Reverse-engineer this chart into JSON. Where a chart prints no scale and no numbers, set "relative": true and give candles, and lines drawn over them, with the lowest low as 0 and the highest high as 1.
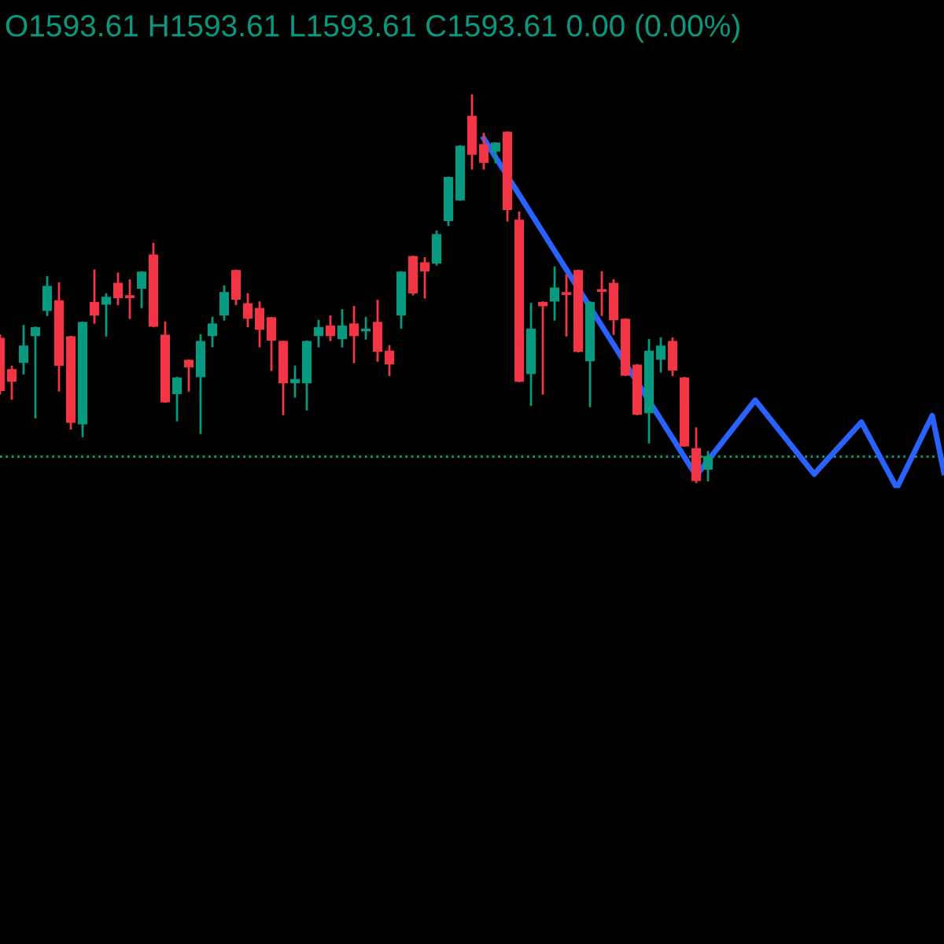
{
  "chart_data": {
    "type": "candlestick",
    "title": "O1593.61 H1593.61 L1593.61 C1593.61 0.00 (0.00%)",
    "relative": true,
    "categories": [
      null,
      null,
      null,
      null,
      null,
      null,
      null,
      null,
      null,
      null,
      null,
      null,
      null,
      null,
      null,
      null,
      null,
      null,
      null,
      null,
      null,
      null,
      null,
      null,
      null,
      null,
      null,
      null,
      null,
      null,
      null,
      null,
      null,
      null,
      null,
      null,
      null,
      null,
      null,
      null,
      null,
      null,
      null,
      null,
      null,
      null,
      null,
      null,
      null,
      null,
      null,
      null,
      null,
      null,
      null,
      null,
      null,
      null,
      null,
      null,
      null,
      null,
      null,
      null,
      null,
      null,
      null,
      null,
      null,
      null,
      null,
      null,
      null,
      null,
      null,
      null,
      null,
      null,
      null,
      null,
      null
    ],
    "ohlc": [
      [
        0.37,
        0.378,
        0.228,
        0.236
      ],
      [
        0.289,
        0.297,
        0.215,
        0.26
      ],
      [
        0.309,
        0.402,
        0.28,
        0.35
      ],
      [
        0.378,
        0.398,
        0.167,
        0.398
      ],
      [
        0.443,
        0.528,
        0.431,
        0.504
      ],
      [
        0.467,
        0.512,
        0.236,
        0.301
      ],
      [
        0.374,
        0.374,
        0.138,
        0.154
      ],
      [
        0.15,
        0.411,
        0.118,
        0.411
      ],
      [
        0.463,
        0.545,
        0.411,
        0.431
      ],
      [
        0.459,
        0.484,
        0.378,
        0.476
      ],
      [
        0.512,
        0.537,
        0.459,
        0.476
      ],
      [
        0.48,
        0.52,
        0.423,
        0.476
      ],
      [
        0.5,
        0.541,
        0.451,
        0.541
      ],
      [
        0.585,
        0.614,
        0.402,
        0.402
      ],
      [
        0.378,
        0.411,
        0.207,
        0.207
      ],
      [
        0.228,
        0.268,
        0.159,
        0.268
      ],
      [
        0.313,
        0.313,
        0.236,
        0.297
      ],
      [
        0.272,
        0.378,
        0.126,
        0.362
      ],
      [
        0.378,
        0.423,
        0.35,
        0.407
      ],
      [
        0.431,
        0.504,
        0.419,
        0.488
      ],
      [
        0.545,
        0.545,
        0.459,
        0.472
      ],
      [
        0.459,
        0.484,
        0.402,
        0.423
      ],
      [
        0.447,
        0.463,
        0.35,
        0.394
      ],
      [
        0.423,
        0.423,
        0.289,
        0.366
      ],
      [
        0.362,
        0.362,
        0.175,
        0.256
      ],
      [
        0.256,
        0.297,
        0.22,
        0.264
      ],
      [
        0.256,
        0.362,
        0.187,
        0.362
      ],
      [
        0.378,
        0.415,
        0.35,
        0.398
      ],
      [
        0.402,
        0.427,
        0.366,
        0.378
      ],
      [
        0.37,
        0.443,
        0.35,
        0.402
      ],
      [
        0.407,
        0.451,
        0.309,
        0.378
      ],
      [
        0.39,
        0.423,
        0.37,
        0.394
      ],
      [
        0.411,
        0.467,
        0.313,
        0.337
      ],
      [
        0.337,
        0.35,
        0.276,
        0.305
      ],
      [
        0.431,
        0.541,
        0.398,
        0.541
      ],
      [
        0.581,
        0.581,
        0.484,
        0.488
      ],
      [
        0.565,
        0.577,
        0.476,
        0.545
      ],
      [
        0.565,
        0.646,
        0.561,
        0.638
      ],
      [
        0.675,
        0.785,
        0.663,
        0.785
      ],
      [
        0.728,
        0.866,
        0.728,
        0.866
      ],
      [
        0.943,
        1.0,
        0.809,
        0.846
      ],
      [
        0.87,
        0.898,
        0.809,
        0.825
      ],
      [
        0.854,
        0.874,
        0.825,
        0.874
      ],
      [
        0.902,
        0.902,
        0.675,
        0.703
      ],
      [
        0.675,
        0.695,
        0.26,
        0.26
      ],
      [
        0.28,
        0.459,
        0.199,
        0.394
      ],
      [
        0.463,
        0.463,
        0.228,
        0.455
      ],
      [
        0.467,
        0.553,
        0.419,
        0.5
      ],
      [
        0.488,
        0.533,
        0.378,
        0.484
      ],
      [
        0.545,
        0.545,
        0.337,
        0.337
      ],
      [
        0.313,
        0.463,
        0.195,
        0.463
      ],
      [
        0.496,
        0.541,
        0.431,
        0.492
      ],
      [
        0.512,
        0.52,
        0.382,
        0.419
      ],
      [
        0.419,
        0.419,
        0.276,
        0.276
      ],
      [
        0.301,
        0.301,
        0.175,
        0.175
      ],
      [
        0.179,
        0.366,
        0.102,
        0.337
      ],
      [
        0.317,
        0.37,
        0.285,
        0.35
      ],
      [
        0.362,
        0.37,
        0.276,
        0.289
      ],
      [
        0.268,
        0.268,
        0.093,
        0.093
      ],
      [
        0.085,
        0.138,
        0.0,
        0.004
      ],
      [
        0.033,
        0.077,
        0.004,
        0.065
      ],
      null,
      null,
      null,
      null,
      null,
      null,
      null,
      null,
      null,
      null,
      null,
      null,
      null,
      null,
      null,
      null,
      null,
      null,
      null,
      null
    ],
    "colors": [
      "#f23645",
      "#f23645",
      "#089981",
      "#089981",
      "#089981",
      "#f23645",
      "#f23645",
      "#089981",
      "#f23645",
      "#089981",
      "#f23645",
      "#f23645",
      "#089981",
      "#f23645",
      "#f23645",
      "#089981",
      "#f23645",
      "#089981",
      "#089981",
      "#089981",
      "#f23645",
      "#f23645",
      "#f23645",
      "#f23645",
      "#f23645",
      "#089981",
      "#089981",
      "#089981",
      "#f23645",
      "#089981",
      "#f23645",
      "#089981",
      "#f23645",
      "#f23645",
      "#089981",
      "#f23645",
      "#f23645",
      "#089981",
      "#089981",
      "#089981",
      "#f23645",
      "#f23645",
      "#089981",
      "#f23645",
      "#f23645",
      "#089981",
      "#f23645",
      "#089981",
      "#f23645",
      "#f23645",
      "#089981",
      "#f23645",
      "#f23645",
      "#f23645",
      "#f23645",
      "#089981",
      "#089981",
      "#f23645",
      "#f23645",
      "#f23645",
      "#089981",
      null,
      null,
      null,
      null,
      null,
      null,
      null,
      null,
      null,
      null,
      null,
      null,
      null,
      null,
      null,
      null,
      null,
      null,
      null,
      null
    ],
    "series": [
      {
        "type": "line",
        "color": "#2962ff",
        "values": [
          null,
          null,
          null,
          null,
          null,
          null,
          null,
          null,
          null,
          null,
          null,
          null,
          null,
          null,
          null,
          null,
          null,
          null,
          null,
          null,
          null,
          null,
          null,
          null,
          null,
          null,
          null,
          null,
          null,
          null,
          null,
          null,
          null,
          null,
          null,
          null,
          null,
          null,
          null,
          null,
          null,
          0.886,
          null,
          null,
          null,
          null,
          null,
          null,
          null,
          null,
          null,
          null,
          null,
          null,
          null,
          null,
          null,
          null,
          null,
          0.016,
          null,
          null,
          null,
          null,
          0.211,
          null,
          null,
          null,
          null,
          0.02,
          null,
          null,
          null,
          0.154,
          null,
          null,
          -0.016,
          null,
          null,
          0.171,
          0.024
        ]
      }
    ],
    "ref_lines": [
      {
        "axis": "y",
        "value": 0.065,
        "color": "#089981",
        "line_style": "dotted"
      }
    ]
  }
}
